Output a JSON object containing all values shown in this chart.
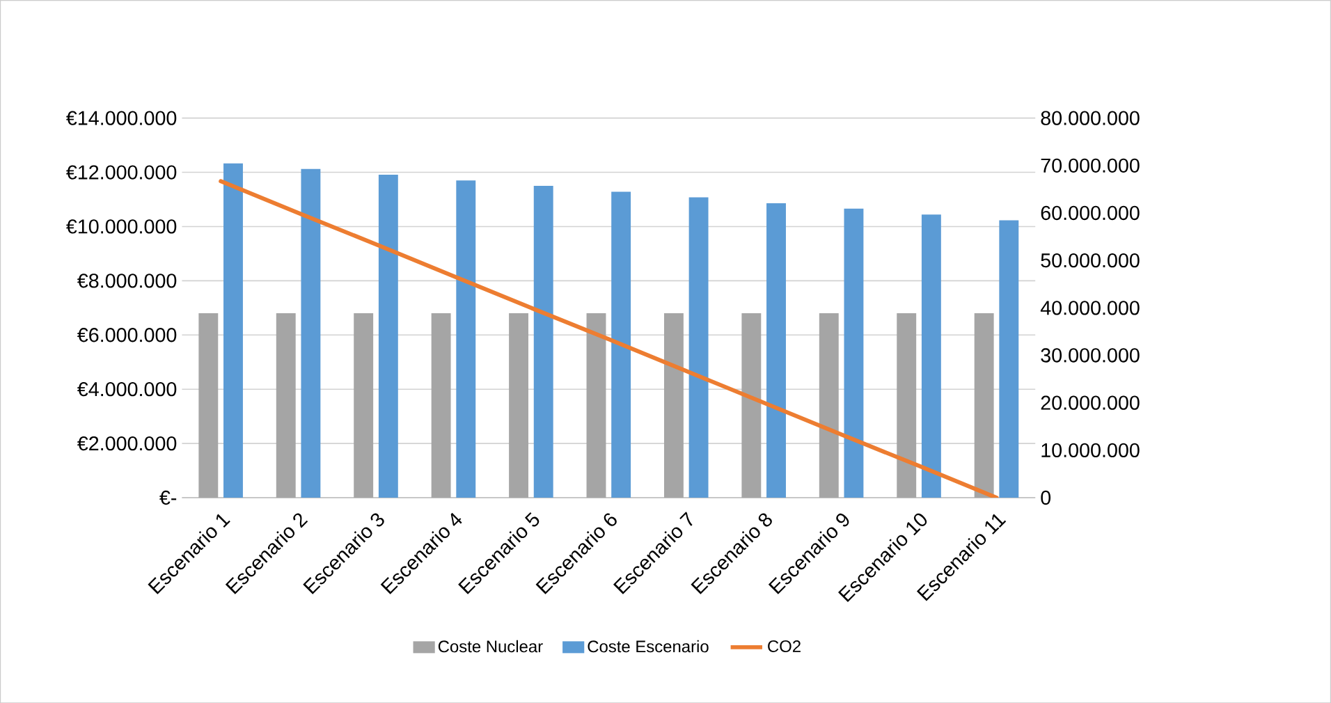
{
  "chart_data": {
    "type": "bar",
    "categories": [
      "Escenario 1",
      "Escenario 2",
      "Escenario 3",
      "Escenario 4",
      "Escenario 5",
      "Escenario 6",
      "Escenario 7",
      "Escenario 8",
      "Escenario 9",
      "Escenario 10",
      "Escenario 11"
    ],
    "series": [
      {
        "name": "Coste Nuclear",
        "color": "#a5a5a5",
        "values": [
          6800000,
          6800000,
          6800000,
          6800000,
          6800000,
          6800000,
          6800000,
          6800000,
          6800000,
          6800000,
          6800000
        ]
      },
      {
        "name": "Coste Escenario",
        "color": "#5b9bd5",
        "values": [
          12330000,
          12120000,
          11910000,
          11700000,
          11500000,
          11280000,
          11080000,
          10860000,
          10660000,
          10440000,
          10230000
        ]
      },
      {
        "name": "CO2",
        "type": "line",
        "axis": "y2",
        "color": "#ed7d31",
        "values": [
          66700000,
          60000000,
          53400000,
          46700000,
          40000000,
          33400000,
          26700000,
          20000000,
          13300000,
          6700000,
          0
        ]
      }
    ],
    "ylim": [
      0,
      14000000
    ],
    "yticks": [
      {
        "value": 0,
        "label": "€-"
      },
      {
        "value": 2000000,
        "label": "€2.000.000"
      },
      {
        "value": 4000000,
        "label": "€4.000.000"
      },
      {
        "value": 6000000,
        "label": "€6.000.000"
      },
      {
        "value": 8000000,
        "label": "€8.000.000"
      },
      {
        "value": 10000000,
        "label": "€10.000.000"
      },
      {
        "value": 12000000,
        "label": "€12.000.000"
      },
      {
        "value": 14000000,
        "label": "€14.000.000"
      }
    ],
    "y2lim": [
      0,
      80000000
    ],
    "y2ticks": [
      0,
      {
        "value": 10000000,
        "label": "10.000.000"
      },
      {
        "value": 20000000,
        "label": "20.000.000"
      },
      {
        "value": 30000000,
        "label": "30.000.000"
      },
      {
        "value": 40000000,
        "label": "40.000.000"
      },
      {
        "value": 50000000,
        "label": "50.000.000"
      },
      {
        "value": 60000000,
        "label": "60.000.000"
      },
      {
        "value": 70000000,
        "label": "70.000.000"
      },
      {
        "value": 80000000,
        "label": "80.000.000"
      }
    ],
    "grid": "y",
    "legend": "bottom"
  }
}
